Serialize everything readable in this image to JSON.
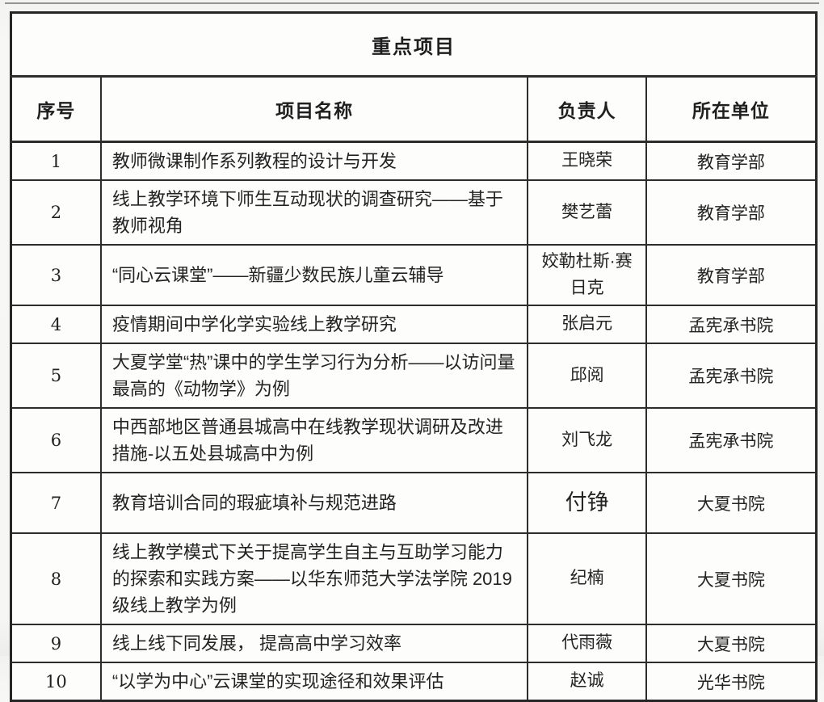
{
  "table": {
    "title": "重点项目",
    "columns": {
      "no": "序号",
      "project": "项目名称",
      "leader": "负责人",
      "unit": "所在单位"
    },
    "rows": [
      {
        "no": "1",
        "project": "教师微课制作系列教程的设计与开发",
        "leader": "王晓荣",
        "unit": "教育学部"
      },
      {
        "no": "2",
        "project": "线上教学环境下师生互动现状的调查研究——基于教师视角",
        "leader": "樊艺蕾",
        "unit": "教育学部"
      },
      {
        "no": "3",
        "project": "“同心云课堂”——新疆少数民族儿童云辅导",
        "leader": "姣勒杜斯·赛日克",
        "unit": "教育学部"
      },
      {
        "no": "4",
        "project": "疫情期间中学化学实验线上教学研究",
        "leader": "张启元",
        "unit": "孟宪承书院"
      },
      {
        "no": "5",
        "project": "大夏学堂“热”课中的学生学习行为分析——以访问量最高的《动物学》为例",
        "leader": "邱阅",
        "unit": "孟宪承书院"
      },
      {
        "no": "6",
        "project": "中西部地区普通县城高中在线教学现状调研及改进措施-以五处县城高中为例",
        "leader": "刘飞龙",
        "unit": "孟宪承书院"
      },
      {
        "no": "7",
        "project": "教育培训合同的瑕疵填补与规范进路",
        "leader": "付铮",
        "unit": "大夏书院"
      },
      {
        "no": "8",
        "project": "线上教学模式下关于提高学生自主与互助学习能力的探索和实践方案——以华东师范大学法学院 2019 级线上教学为例",
        "leader": "纪楠",
        "unit": "大夏书院"
      },
      {
        "no": "9",
        "project": "线上线下同发展， 提高高中学习效率",
        "leader": "代雨薇",
        "unit": "大夏书院"
      },
      {
        "no": "10",
        "project": "“以学为中心”云课堂的实现途径和效果评估",
        "leader": "赵诚",
        "unit": "光华书院"
      }
    ],
    "border_color": "#2d2d2d",
    "cell_background": "#fdfdfc"
  }
}
